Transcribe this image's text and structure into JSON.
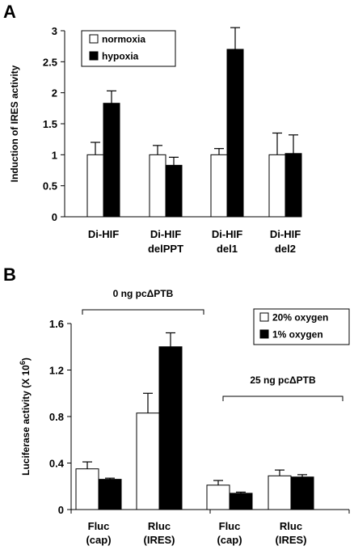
{
  "figure": {
    "panel_a_letter": "A",
    "panel_b_letter": "B"
  },
  "chart_data": [
    {
      "type": "bar",
      "panel": "A",
      "ylabel": "Induction of IRES activity",
      "ylim": [
        0,
        3
      ],
      "yticks": [
        "0",
        "0.5",
        "1",
        "1.5",
        "2",
        "2.5",
        "3"
      ],
      "categories": [
        [
          "Di-HIF"
        ],
        [
          "Di-HIF",
          "delPPT"
        ],
        [
          "Di-HIF",
          "del1"
        ],
        [
          "Di-HIF",
          "del2"
        ]
      ],
      "series": [
        {
          "name": "normoxia",
          "color": "#ffffff",
          "values": [
            1.0,
            1.0,
            1.0,
            1.0
          ],
          "errors": [
            0.2,
            0.15,
            0.1,
            0.35
          ]
        },
        {
          "name": "hypoxia",
          "color": "#000000",
          "values": [
            1.83,
            0.83,
            2.7,
            1.02
          ],
          "errors": [
            0.2,
            0.13,
            0.35,
            0.3
          ]
        }
      ],
      "legend_position": "top-left",
      "grid": false
    },
    {
      "type": "bar",
      "panel": "B",
      "ylabel": "Luciferase activity (X 10",
      "ylabel_sup": "6",
      "ylabel_close": ")",
      "ylim": [
        0,
        1.6
      ],
      "yticks": [
        "0",
        "0.4",
        "0.8",
        "1.2",
        "1.6"
      ],
      "categories": [
        [
          "Fluc",
          "(cap)"
        ],
        [
          "Rluc",
          "(IRES)"
        ],
        [
          "Fluc",
          "(cap)"
        ],
        [
          "Rluc",
          "(IRES)"
        ]
      ],
      "groups": [
        {
          "label": "0 ng pcΔPTB",
          "category_indices": [
            0,
            1
          ]
        },
        {
          "label": "25 ng pcΔPTB",
          "category_indices": [
            2,
            3
          ]
        }
      ],
      "series": [
        {
          "name": "20% oxygen",
          "color": "#ffffff",
          "values": [
            0.35,
            0.83,
            0.21,
            0.29
          ],
          "errors": [
            0.06,
            0.17,
            0.04,
            0.05
          ]
        },
        {
          "name": "1% oxygen",
          "color": "#000000",
          "values": [
            0.26,
            1.4,
            0.14,
            0.28
          ],
          "errors": [
            0.01,
            0.12,
            0.01,
            0.02
          ]
        }
      ],
      "legend_position": "top-right",
      "grid": false
    }
  ]
}
